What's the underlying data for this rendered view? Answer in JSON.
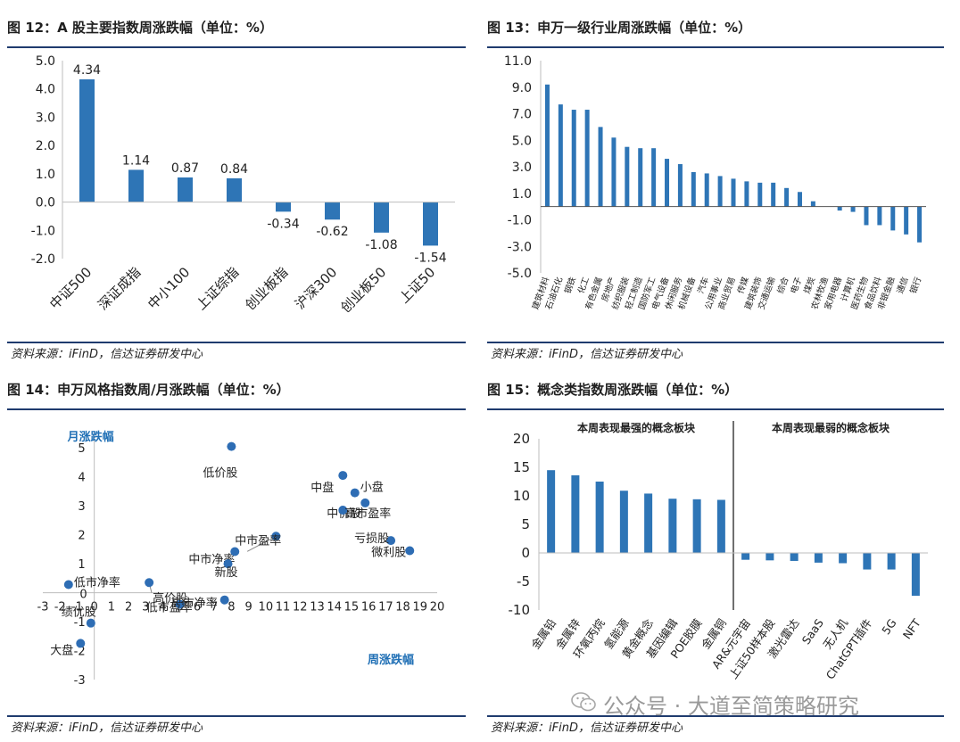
{
  "panels": [
    {
      "title": "图 12：A 股主要指数周涨跌幅（单位：%）",
      "source": "资料来源：iFinD，信达证券研发中心"
    },
    {
      "title": "图 13：申万一级行业周涨跌幅（单位：%）",
      "source": "资料来源：iFinD，信达证券研发中心"
    },
    {
      "title": "图 14：申万风格指数周/月涨跌幅（单位：%）",
      "source": "资料来源：iFinD，信达证券研发中心"
    },
    {
      "title": "图 15：概念类指数周涨跌幅（单位：%）",
      "source": "资料来源：iFinD，信达证券研发中心"
    }
  ],
  "watermark": "公众号 · 大道至简策略研究",
  "colors": {
    "bar": "#2e75b6",
    "dot": "#2e6db4",
    "rule": "#1f3b6e",
    "axis_title": "#1f6fb5"
  },
  "chart_data": [
    {
      "type": "bar",
      "title": "A 股主要指数周涨跌幅（单位：%）",
      "categories": [
        "中证500",
        "深证成指",
        "中小100",
        "上证综指",
        "创业板指",
        "沪深300",
        "创业板50",
        "上证50"
      ],
      "values": [
        4.34,
        1.14,
        0.87,
        0.84,
        -0.34,
        -0.62,
        -1.08,
        -1.54
      ],
      "value_labels": [
        "4.34",
        "1.14",
        "0.87",
        "0.84",
        "-0.34",
        "-0.62",
        "-1.08",
        "-1.54"
      ],
      "ylim": [
        -2.0,
        5.0
      ],
      "yticks": [
        "5.0",
        "4.0",
        "3.0",
        "2.0",
        "1.0",
        "0.0",
        "-1.0",
        "-2.0"
      ],
      "ytick_values": [
        5,
        4,
        3,
        2,
        1,
        0,
        -1,
        -2
      ]
    },
    {
      "type": "bar",
      "title": "申万一级行业周涨跌幅（单位：%）",
      "categories": [
        "建筑材料",
        "石油石化",
        "钢铁",
        "化工",
        "有色金属",
        "房地产",
        "纺织服装",
        "轻工制造",
        "国防军工",
        "电气设备",
        "休闲服务",
        "机械设备",
        "汽车",
        "公用事业",
        "商业贸易",
        "传媒",
        "建筑装饰",
        "交通运输",
        "综合",
        "电子",
        "煤炭",
        "农林牧渔",
        "家用电器",
        "计算机",
        "医药生物",
        "食品饮料",
        "非银金融",
        "通信",
        "银行"
      ],
      "values": [
        9.2,
        7.7,
        7.3,
        7.3,
        6.0,
        5.2,
        4.5,
        4.4,
        4.4,
        3.6,
        3.2,
        2.6,
        2.5,
        2.3,
        2.1,
        1.9,
        1.8,
        1.8,
        1.4,
        1.1,
        0.4,
        0.0,
        -0.3,
        -0.4,
        -1.4,
        -1.4,
        -1.8,
        -2.1,
        -2.7
      ],
      "ylim": [
        -5.0,
        11.0
      ],
      "yticks": [
        "11.0",
        "9.0",
        "7.0",
        "5.0",
        "3.0",
        "1.0",
        "-1.0",
        "-3.0",
        "-5.0"
      ],
      "ytick_values": [
        11,
        9,
        7,
        5,
        3,
        1,
        -1,
        -3,
        -5
      ]
    },
    {
      "type": "scatter",
      "title": "申万风格指数周/月涨跌幅（单位：%）",
      "xlabel": "周涨跌幅",
      "ylabel": "月涨跌幅",
      "xlim": [
        -3,
        20
      ],
      "ylim": [
        -3,
        5.5
      ],
      "xticks": [
        "-3",
        "-2",
        "-1",
        "0",
        "1",
        "2",
        "3",
        "4",
        "5",
        "6",
        "7",
        "8",
        "9",
        "10",
        "11",
        "12",
        "13",
        "14",
        "15",
        "16",
        "17",
        "18",
        "19",
        "20"
      ],
      "xtick_values": [
        -3,
        -2,
        -1,
        0,
        1,
        2,
        3,
        4,
        5,
        6,
        7,
        8,
        9,
        10,
        11,
        12,
        13,
        14,
        15,
        16,
        17,
        18,
        19,
        20
      ],
      "yticks": [
        "5",
        "4",
        "3",
        "2",
        "1",
        "0",
        "-1",
        "-2",
        "-3"
      ],
      "ytick_values": [
        5,
        4,
        3,
        2,
        1,
        0,
        -1,
        -2,
        -3
      ],
      "points": [
        {
          "label": "低价股",
          "x": 8.0,
          "y": 5.05
        },
        {
          "label": "中盘",
          "x": 14.5,
          "y": 4.05
        },
        {
          "label": "小盘",
          "x": 15.2,
          "y": 3.45
        },
        {
          "label": "中价股",
          "x": 15.8,
          "y": 3.1
        },
        {
          "label": "高市盈率",
          "x": 14.5,
          "y": 2.85
        },
        {
          "label": "亏损股",
          "x": 17.3,
          "y": 1.8
        },
        {
          "label": "微利股",
          "x": 18.4,
          "y": 1.45
        },
        {
          "label": "中市净率",
          "x": 10.6,
          "y": 1.95
        },
        {
          "label": "中市盈率",
          "x": 8.2,
          "y": 1.42
        },
        {
          "label": "新股",
          "x": 7.8,
          "y": 1.0
        },
        {
          "label": "高市净率",
          "x": 7.6,
          "y": -0.25
        },
        {
          "label": "低市盈率",
          "x": 5.0,
          "y": -0.4
        },
        {
          "label": "高价股",
          "x": 3.2,
          "y": 0.35
        },
        {
          "label": "低市净率",
          "x": -1.5,
          "y": 0.28
        },
        {
          "label": "绩优股",
          "x": -0.2,
          "y": -1.05
        },
        {
          "label": "大盘",
          "x": -0.8,
          "y": -1.75
        }
      ]
    },
    {
      "type": "bar",
      "title": "概念类指数周涨跌幅（单位：%）",
      "group_labels": [
        "本周表现最强的概念板块",
        "本周表现最弱的概念板块"
      ],
      "categories": [
        "金属铅",
        "金属锌",
        "环氧丙烷",
        "氢能源",
        "黄金概念",
        "基因编辑",
        "POE胶膜",
        "金属铜",
        "AR&元宇宙",
        "上证50样本股",
        "激光雷达",
        "SaaS",
        "无人机",
        "ChatGPT插件",
        "5G",
        "NFT"
      ],
      "values": [
        14.5,
        13.6,
        12.5,
        10.9,
        10.4,
        9.5,
        9.4,
        9.3,
        -1.2,
        -1.3,
        -1.4,
        -1.7,
        -1.8,
        -2.9,
        -2.9,
        -7.5
      ],
      "ylim": [
        -10,
        20
      ],
      "yticks": [
        "20",
        "15",
        "10",
        "5",
        "0",
        "-5",
        "-10"
      ],
      "ytick_values": [
        20,
        15,
        10,
        5,
        0,
        -5,
        -10
      ]
    }
  ]
}
